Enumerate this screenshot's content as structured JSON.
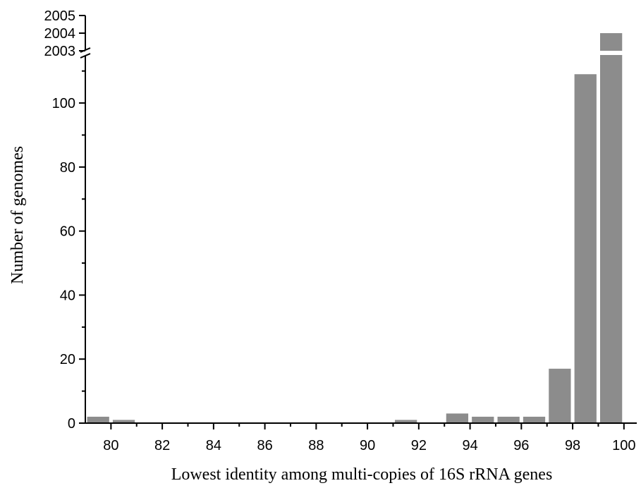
{
  "chart_data": {
    "type": "bar",
    "title": "",
    "xlabel": "Lowest identity among multi-copies of 16S rRNA genes",
    "ylabel": "Number of genomes",
    "x_ticks": [
      "80",
      "82",
      "84",
      "86",
      "88",
      "90",
      "92",
      "94",
      "96",
      "98",
      "100"
    ],
    "y_ticks_lower": [
      "0",
      "20",
      "40",
      "60",
      "80",
      "100"
    ],
    "y_ticks_upper": [
      "2003",
      "2004",
      "2005"
    ],
    "xlim": [
      79,
      100.5
    ],
    "ylim_lower": [
      0,
      115
    ],
    "ylim_upper": [
      2003,
      2005
    ],
    "y_axis_break": true,
    "grid": false,
    "bar_color": "#8c8c8c",
    "bars": [
      {
        "x": 79.5,
        "value": 2
      },
      {
        "x": 80.5,
        "value": 1
      },
      {
        "x": 91.5,
        "value": 1
      },
      {
        "x": 93.5,
        "value": 3
      },
      {
        "x": 94.5,
        "value": 2
      },
      {
        "x": 95.5,
        "value": 2
      },
      {
        "x": 96.5,
        "value": 2
      },
      {
        "x": 97.5,
        "value": 17
      },
      {
        "x": 98.5,
        "value": 109
      },
      {
        "x": 99.5,
        "value": 2004
      }
    ]
  }
}
